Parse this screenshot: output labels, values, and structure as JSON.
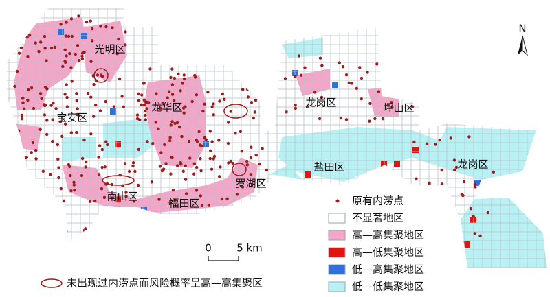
{
  "districts": [
    {
      "name": "光明区"
    },
    {
      "name": "宝安区"
    },
    {
      "name": "龙华区"
    },
    {
      "name": "龙岗区"
    },
    {
      "name": "坪山区"
    },
    {
      "name": "盐田区"
    },
    {
      "name": "罗湖区"
    },
    {
      "name": "南山区"
    },
    {
      "name": "福田区"
    },
    {
      "name": "龙岗区"
    }
  ],
  "north": "N",
  "scale": {
    "start": "0",
    "end": "5 km"
  },
  "legend": [
    {
      "label": "原有内涝点",
      "color": "#9b1c1c"
    },
    {
      "label": "不显著地区",
      "color": "#ffffff"
    },
    {
      "label": "高—高集聚地区",
      "color": "#f4a6c8"
    },
    {
      "label": "高—低集聚地区",
      "color": "#e3130f"
    },
    {
      "label": "低—高集聚地区",
      "color": "#2f6fe0"
    },
    {
      "label": "低—低集聚地区",
      "color": "#b8f1f4"
    }
  ],
  "note": "未出现过内涝点而风险概率呈高—高集聚区"
}
